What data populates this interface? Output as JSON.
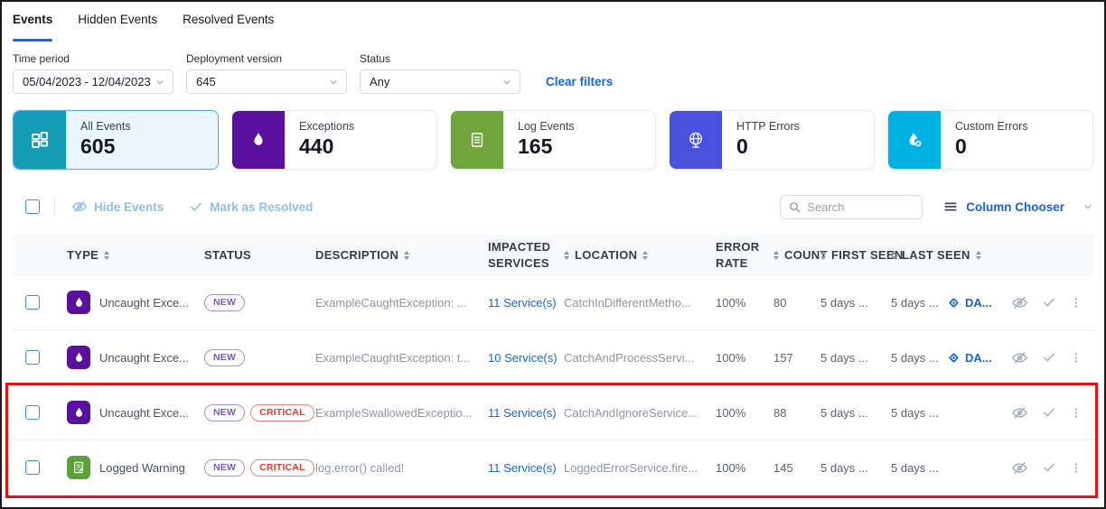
{
  "tabs": [
    {
      "label": "Events",
      "active": true
    },
    {
      "label": "Hidden Events",
      "active": false
    },
    {
      "label": "Resolved Events",
      "active": false
    }
  ],
  "filters": {
    "time_period": {
      "label": "Time period",
      "value": "05/04/2023 - 12/04/2023"
    },
    "deployment_version": {
      "label": "Deployment version",
      "value": "645"
    },
    "status": {
      "label": "Status",
      "value": "Any"
    },
    "clear_filters_label": "Clear filters"
  },
  "stat_cards": [
    {
      "label": "All Events",
      "value": "605",
      "icon": "grid-icon",
      "color": "#149db4",
      "selected": true
    },
    {
      "label": "Exceptions",
      "value": "440",
      "icon": "flame-icon",
      "color": "#5a0f9e",
      "selected": false
    },
    {
      "label": "Log Events",
      "value": "165",
      "icon": "log-document-icon",
      "color": "#6fa53a",
      "selected": false
    },
    {
      "label": "HTTP Errors",
      "value": "0",
      "icon": "globe-icon",
      "color": "#4a51dd",
      "selected": false
    },
    {
      "label": "Custom Errors",
      "value": "0",
      "icon": "flame-gear-icon",
      "color": "#00b2e3",
      "selected": false
    }
  ],
  "toolbar": {
    "hide_events_label": "Hide Events",
    "mark_resolved_label": "Mark as Resolved",
    "search_placeholder": "Search",
    "column_chooser_label": "Column Chooser"
  },
  "table": {
    "columns": [
      {
        "label": "TYPE",
        "sort_before": false,
        "sort_after": true
      },
      {
        "label": "STATUS",
        "sort_before": false,
        "sort_after": false
      },
      {
        "label": "DESCRIPTION",
        "sort_before": false,
        "sort_after": true
      },
      {
        "label": "IMPACTED SERVICES",
        "sort_before": false,
        "sort_after": false
      },
      {
        "label": "LOCATION",
        "sort_before": true,
        "sort_after": true
      },
      {
        "label": "ERROR RATE",
        "sort_before": false,
        "sort_after": false
      },
      {
        "label": "COUNT",
        "sort_before": true,
        "sort_after": false
      },
      {
        "label": "FIRST SEEN",
        "sort_before": true,
        "sort_after": false
      },
      {
        "label": "LAST SEEN",
        "sort_before": true,
        "sort_after": true
      }
    ],
    "rows": [
      {
        "type": "Uncaught Exce...",
        "type_icon": "exception-icon",
        "badges": [
          "NEW"
        ],
        "description": "ExampleCaughtException: ...",
        "impacted_services": "11 Service(s)",
        "location": "CatchInDifferentMetho...",
        "error_rate": "100%",
        "count": "80",
        "first_seen": "5 days ...",
        "last_seen": "5 days ...",
        "jira_link": "DA..."
      },
      {
        "type": "Uncaught Exce...",
        "type_icon": "exception-icon",
        "badges": [
          "NEW"
        ],
        "description": "ExampleCaughtException: t...",
        "impacted_services": "10 Service(s)",
        "location": "CatchAndProcessServi...",
        "error_rate": "100%",
        "count": "157",
        "first_seen": "5 days ...",
        "last_seen": "5 days ...",
        "jira_link": "DA..."
      },
      {
        "type": "Uncaught Exce...",
        "type_icon": "exception-icon",
        "badges": [
          "NEW",
          "CRITICAL"
        ],
        "description": "ExampleSwallowedExceptio...",
        "impacted_services": "11 Service(s)",
        "location": "CatchAndIgnoreService...",
        "error_rate": "100%",
        "count": "88",
        "first_seen": "5 days ...",
        "last_seen": "5 days ...",
        "jira_link": null
      },
      {
        "type": "Logged Warning",
        "type_icon": "log-warning-icon",
        "badges": [
          "NEW",
          "CRITICAL"
        ],
        "description": "log.error() called!",
        "impacted_services": "11 Service(s)",
        "location": "LoggedErrorService.fire...",
        "error_rate": "100%",
        "count": "145",
        "first_seen": "5 days ...",
        "last_seen": "5 days ...",
        "jira_link": null
      }
    ]
  },
  "colors": {
    "accent_blue": "#1565d8",
    "tab_underline": "#1669d9",
    "badge_new": "#7e57c2",
    "badge_critical": "#e23a32",
    "highlight_box": "#dd1515",
    "selected_card_bg": "#eaf6fd",
    "selected_card_border": "#58abe4",
    "exception_icon_bg": "#5a0f9e",
    "log_warning_icon_bg": "#5ba03a",
    "disabled_action_blue": "#8fbfe8"
  }
}
